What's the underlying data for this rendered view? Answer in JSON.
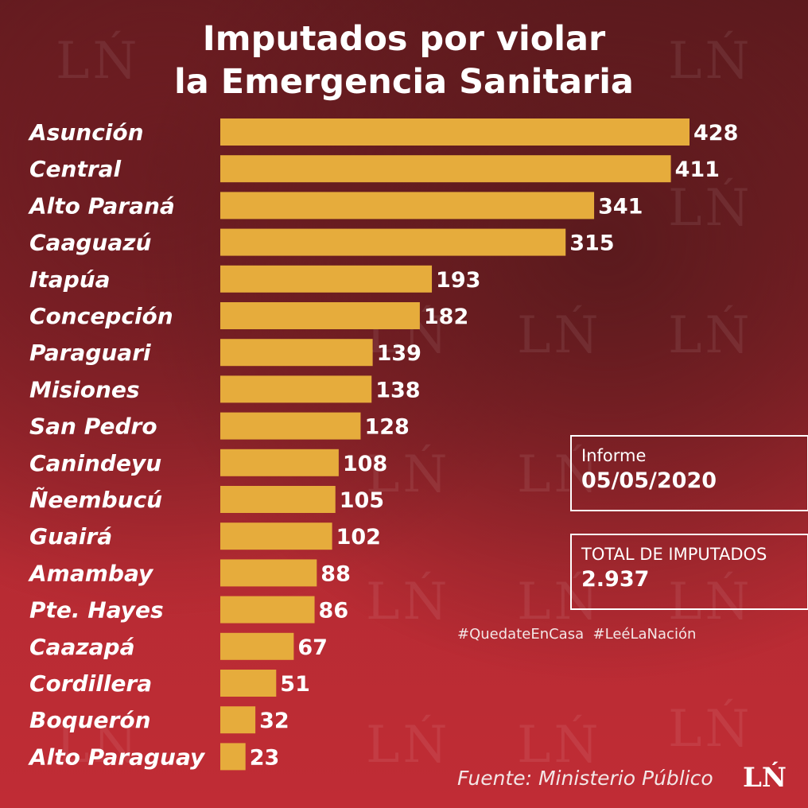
{
  "title": {
    "line1": "Imputados por violar",
    "line2": "la Emergencia Sanitaria"
  },
  "chart_data": {
    "type": "bar",
    "orientation": "horizontal",
    "categories": [
      "Asunción",
      "Central",
      "Alto Paraná",
      "Caaguazú",
      "Itapúa",
      "Concepción",
      "Paraguari",
      "Misiones",
      "San Pedro",
      "Canindeyu",
      "Ñeembucú",
      "Guairá",
      "Amambay",
      "Pte. Hayes",
      "Caazapá",
      "Cordillera",
      "Boquerón",
      "Alto Paraguay"
    ],
    "values": [
      428,
      411,
      341,
      315,
      193,
      182,
      139,
      138,
      128,
      108,
      105,
      102,
      88,
      86,
      67,
      51,
      32,
      23
    ],
    "xlim": [
      0,
      428
    ],
    "bar_color": "#e6ac3c",
    "grid": false
  },
  "info": {
    "report_label": "Informe",
    "report_date": "05/05/2020",
    "total_label": "TOTAL DE IMPUTADOS",
    "total_value": "2.937"
  },
  "hashtags": "#QuedateEnCasa  #LeéLaNación",
  "source": "Fuente: Ministerio Público",
  "logo": "LŃ",
  "watermark": "LŃ"
}
